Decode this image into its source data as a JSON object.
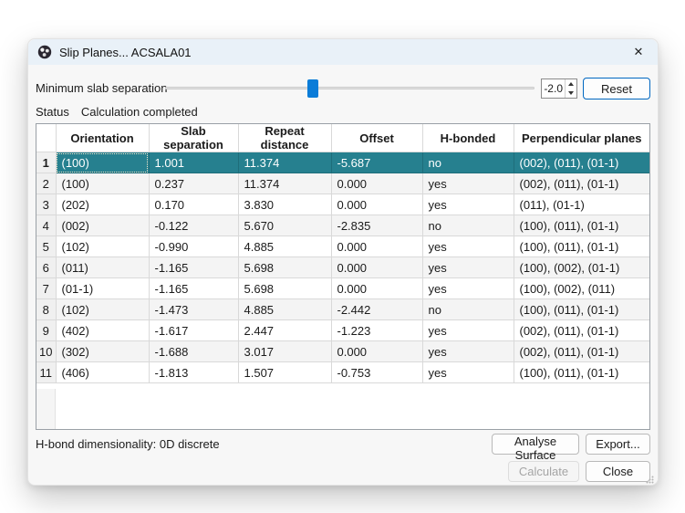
{
  "window": {
    "title": "Slip Planes... ACSALA01",
    "close_glyph": "✕"
  },
  "controls": {
    "slider_label": "Minimum slab separation",
    "slider_percent": 40,
    "spin_value": "-2.0",
    "reset_label": "Reset"
  },
  "status": {
    "label": "Status",
    "value": "Calculation completed"
  },
  "table": {
    "columns": [
      "Orientation",
      "Slab separation",
      "Repeat distance",
      "Offset",
      "H-bonded",
      "Perpendicular planes"
    ],
    "rows": [
      {
        "num": "1",
        "orientation": "(100)",
        "slab": "1.001",
        "repeat": "11.374",
        "offset": "-5.687",
        "hbonded": "no",
        "perp": "(002), (011), (01-1)",
        "selected": true
      },
      {
        "num": "2",
        "orientation": "(100)",
        "slab": "0.237",
        "repeat": "11.374",
        "offset": "0.000",
        "hbonded": "yes",
        "perp": "(002), (011), (01-1)"
      },
      {
        "num": "3",
        "orientation": "(202)",
        "slab": "0.170",
        "repeat": "3.830",
        "offset": "0.000",
        "hbonded": "yes",
        "perp": "(011), (01-1)"
      },
      {
        "num": "4",
        "orientation": "(002)",
        "slab": "-0.122",
        "repeat": "5.670",
        "offset": "-2.835",
        "hbonded": "no",
        "perp": "(100), (011), (01-1)"
      },
      {
        "num": "5",
        "orientation": "(102)",
        "slab": "-0.990",
        "repeat": "4.885",
        "offset": "0.000",
        "hbonded": "yes",
        "perp": "(100), (011), (01-1)"
      },
      {
        "num": "6",
        "orientation": "(011)",
        "slab": "-1.165",
        "repeat": "5.698",
        "offset": "0.000",
        "hbonded": "yes",
        "perp": "(100), (002), (01-1)"
      },
      {
        "num": "7",
        "orientation": "(01-1)",
        "slab": "-1.165",
        "repeat": "5.698",
        "offset": "0.000",
        "hbonded": "yes",
        "perp": "(100), (002), (011)"
      },
      {
        "num": "8",
        "orientation": "(102)",
        "slab": "-1.473",
        "repeat": "4.885",
        "offset": "-2.442",
        "hbonded": "no",
        "perp": "(100), (011), (01-1)"
      },
      {
        "num": "9",
        "orientation": "(402)",
        "slab": "-1.617",
        "repeat": "2.447",
        "offset": "-1.223",
        "hbonded": "yes",
        "perp": "(002), (011), (01-1)"
      },
      {
        "num": "10",
        "orientation": "(302)",
        "slab": "-1.688",
        "repeat": "3.017",
        "offset": "0.000",
        "hbonded": "yes",
        "perp": "(002), (011), (01-1)"
      },
      {
        "num": "11",
        "orientation": "(406)",
        "slab": "-1.813",
        "repeat": "1.507",
        "offset": "-0.753",
        "hbonded": "yes",
        "perp": "(100), (011), (01-1)"
      }
    ]
  },
  "footer": {
    "hbond_text": "H-bond dimensionality: 0D discrete",
    "analyse_label": "Analyse Surface",
    "export_label": "Export...",
    "calculate_label": "Calculate",
    "close_label": "Close"
  },
  "colors": {
    "selection_teal": "#26808f",
    "accent_blue": "#0b7cd8",
    "reset_border_blue": "#0067c0",
    "titlebar_bg": "#e9f1f8"
  }
}
